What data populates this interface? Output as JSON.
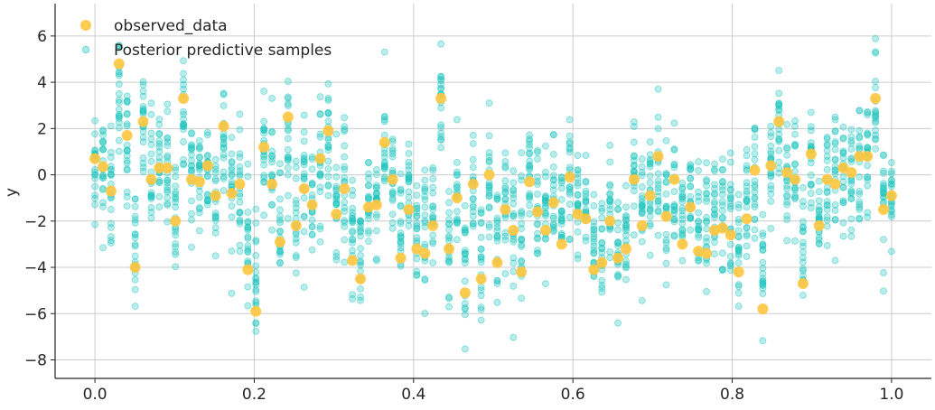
{
  "chart_data": {
    "type": "scatter",
    "title": "",
    "xlabel": "",
    "ylabel": "y",
    "xlim": [
      -0.05,
      1.05
    ],
    "ylim": [
      -8.8,
      7.4
    ],
    "xticks": [
      0.0,
      0.2,
      0.4,
      0.6,
      0.8,
      1.0
    ],
    "xtick_labels": [
      "0.0",
      "0.2",
      "0.4",
      "0.6",
      "0.8",
      "1.0"
    ],
    "yticks": [
      -8,
      -6,
      -4,
      -2,
      0,
      2,
      4,
      6
    ],
    "ytick_labels": [
      "−8",
      "−6",
      "−4",
      "−2",
      "0",
      "2",
      "4",
      "6"
    ],
    "grid": true,
    "legend_position": "top-left",
    "colors": {
      "observed": "#ffc53d",
      "samples": "#17c3bd",
      "grid": "#cccccc",
      "axis": "#262626"
    },
    "series": [
      {
        "name": "observed_data",
        "x_range": [
          0,
          1
        ],
        "y": [
          0.7,
          0.35,
          -0.7,
          4.8,
          1.7,
          -4.0,
          2.3,
          -0.2,
          0.3,
          0.3,
          -2.0,
          3.3,
          -0.2,
          -0.3,
          0.4,
          -0.9,
          2.1,
          -0.8,
          -0.4,
          -4.1,
          -5.9,
          1.2,
          -0.4,
          -2.9,
          2.5,
          -2.2,
          -0.6,
          -1.3,
          0.7,
          1.9,
          -1.7,
          -0.6,
          -3.7,
          -4.5,
          -1.4,
          -1.3,
          1.4,
          -0.2,
          -3.6,
          -1.5,
          -3.2,
          -3.4,
          -2.2,
          3.3,
          -3.2,
          -1.0,
          -5.1,
          -0.4,
          -4.5,
          0.0,
          -3.8,
          -1.5,
          -2.4,
          -4.2,
          -0.3,
          -1.6,
          -2.4,
          -1.2,
          -3.0,
          -0.1,
          -1.7,
          -1.9,
          -4.1,
          -3.8,
          -2.0,
          -3.6,
          -3.2,
          -0.2,
          -2.2,
          -0.9,
          0.8,
          -1.8,
          -0.2,
          -3.0,
          -1.4,
          -3.3,
          -3.4,
          -2.4,
          -2.3,
          -2.6,
          -4.2,
          -1.9,
          0.2,
          -5.8,
          0.4,
          2.3,
          0.1,
          -0.2,
          -4.7,
          0.9,
          -2.2,
          -0.2,
          -0.4,
          0.3,
          0.1,
          0.8,
          0.8,
          3.3,
          -1.5,
          -0.9
        ]
      },
      {
        "name": "Posterior predictive samples",
        "samples_per_x": 20,
        "spread_sd": 1.3
      }
    ]
  }
}
